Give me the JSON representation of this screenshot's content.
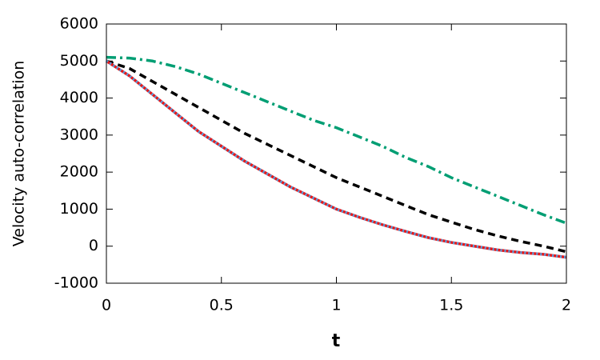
{
  "chart_data": {
    "type": "line",
    "xlabel": "t",
    "ylabel": "Velocity auto-correlation",
    "x": [
      0,
      0.1,
      0.2,
      0.3,
      0.4,
      0.5,
      0.6,
      0.7,
      0.8,
      0.9,
      1,
      1.1,
      1.2,
      1.3,
      1.4,
      1.5,
      1.6,
      1.7,
      1.8,
      1.9,
      2
    ],
    "series": [
      {
        "color": "#009e73",
        "dash": "dashdot",
        "values": [
          5100,
          5080,
          5000,
          4850,
          4650,
          4400,
          4150,
          3900,
          3650,
          3400,
          3200,
          2950,
          2700,
          2400,
          2150,
          1850,
          1600,
          1350,
          1100,
          850,
          620
        ]
      },
      {
        "color": "#000000",
        "dash": "dash",
        "values": [
          5000,
          4800,
          4450,
          4100,
          3750,
          3400,
          3050,
          2750,
          2450,
          2150,
          1850,
          1600,
          1350,
          1100,
          850,
          650,
          450,
          280,
          130,
          0,
          -150
        ]
      },
      {
        "color": "#e41a1c",
        "dash": "solid",
        "values": [
          5000,
          4600,
          4100,
          3600,
          3100,
          2700,
          2300,
          1950,
          1600,
          1300,
          1000,
          780,
          580,
          400,
          230,
          100,
          0,
          -100,
          -170,
          -220,
          -300
        ]
      },
      {
        "color": "#56a0e0",
        "dash": "dot",
        "values": [
          5000,
          4600,
          4100,
          3600,
          3100,
          2700,
          2300,
          1950,
          1600,
          1300,
          1000,
          780,
          580,
          400,
          230,
          100,
          0,
          -100,
          -170,
          -220,
          -300
        ]
      }
    ],
    "xlim": [
      0,
      2
    ],
    "xticks": [
      0,
      0.5,
      1,
      1.5,
      2
    ],
    "ylim": [
      -1000,
      6000
    ],
    "yticks": [
      -1000,
      0,
      1000,
      2000,
      3000,
      4000,
      5000,
      6000
    ]
  }
}
